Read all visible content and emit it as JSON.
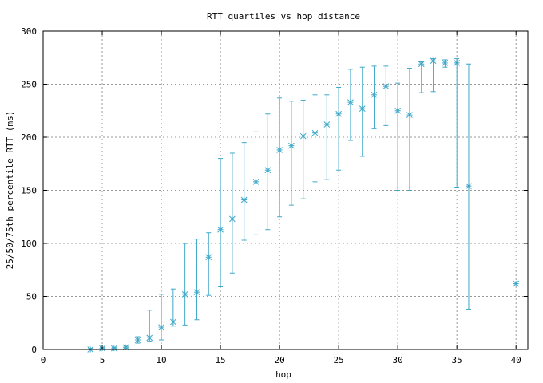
{
  "chart_data": {
    "type": "scatter",
    "title": "RTT quartiles vs hop distance",
    "xlabel": "hop",
    "ylabel": "25/50/75th percentile RTT (ms)",
    "xlim": [
      0,
      41
    ],
    "ylim": [
      0,
      300
    ],
    "xticks": [
      0,
      5,
      10,
      15,
      20,
      25,
      30,
      35,
      40
    ],
    "yticks": [
      0,
      50,
      100,
      150,
      200,
      250,
      300
    ],
    "grid": true,
    "colors": {
      "series": "#3fa8c8",
      "grid": "#999999",
      "axis": "#000000"
    },
    "series": [
      {
        "marker": "asterisk",
        "error_bars": true,
        "points": [
          {
            "x": 4,
            "q25": 0,
            "median": 0,
            "q75": 1
          },
          {
            "x": 5,
            "q25": 0,
            "median": 1,
            "q75": 2
          },
          {
            "x": 6,
            "q25": 0,
            "median": 1,
            "q75": 2
          },
          {
            "x": 7,
            "q25": 1,
            "median": 2,
            "q75": 3
          },
          {
            "x": 8,
            "q25": 6,
            "median": 9,
            "q75": 12
          },
          {
            "x": 9,
            "q25": 8,
            "median": 11,
            "q75": 37
          },
          {
            "x": 10,
            "q25": 9,
            "median": 21,
            "q75": 52
          },
          {
            "x": 11,
            "q25": 22,
            "median": 26,
            "q75": 57
          },
          {
            "x": 12,
            "q25": 23,
            "median": 52,
            "q75": 100
          },
          {
            "x": 13,
            "q25": 28,
            "median": 54,
            "q75": 104
          },
          {
            "x": 14,
            "q25": 51,
            "median": 87,
            "q75": 110
          },
          {
            "x": 15,
            "q25": 59,
            "median": 113,
            "q75": 180
          },
          {
            "x": 16,
            "q25": 72,
            "median": 123,
            "q75": 185
          },
          {
            "x": 17,
            "q25": 103,
            "median": 141,
            "q75": 195
          },
          {
            "x": 18,
            "q25": 108,
            "median": 158,
            "q75": 205
          },
          {
            "x": 19,
            "q25": 113,
            "median": 169,
            "q75": 222
          },
          {
            "x": 20,
            "q25": 125,
            "median": 188,
            "q75": 237
          },
          {
            "x": 21,
            "q25": 136,
            "median": 192,
            "q75": 234
          },
          {
            "x": 22,
            "q25": 142,
            "median": 201,
            "q75": 235
          },
          {
            "x": 23,
            "q25": 158,
            "median": 204,
            "q75": 240
          },
          {
            "x": 24,
            "q25": 160,
            "median": 212,
            "q75": 240
          },
          {
            "x": 25,
            "q25": 169,
            "median": 222,
            "q75": 247
          },
          {
            "x": 26,
            "q25": 197,
            "median": 233,
            "q75": 264
          },
          {
            "x": 27,
            "q25": 182,
            "median": 227,
            "q75": 266
          },
          {
            "x": 28,
            "q25": 208,
            "median": 240,
            "q75": 267
          },
          {
            "x": 29,
            "q25": 211,
            "median": 248,
            "q75": 267
          },
          {
            "x": 30,
            "q25": 150,
            "median": 225,
            "q75": 251
          },
          {
            "x": 31,
            "q25": 150,
            "median": 221,
            "q75": 265
          },
          {
            "x": 32,
            "q25": 242,
            "median": 269,
            "q75": 271
          },
          {
            "x": 33,
            "q25": 243,
            "median": 272,
            "q75": 274
          },
          {
            "x": 34,
            "q25": 266,
            "median": 270,
            "q75": 273
          },
          {
            "x": 35,
            "q25": 153,
            "median": 270,
            "q75": 274
          },
          {
            "x": 36,
            "q25": 38,
            "median": 154,
            "q75": 269
          },
          {
            "x": 40,
            "q25": 62,
            "median": 62,
            "q75": 62
          }
        ]
      }
    ]
  }
}
